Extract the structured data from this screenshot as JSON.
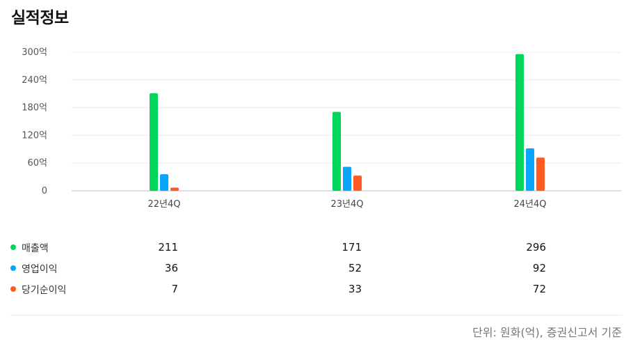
{
  "page": {
    "title": "실적정보",
    "footnote": "단위: 원화(억), 증권신고서 기준"
  },
  "chart_data": {
    "type": "bar",
    "categories": [
      "22년4Q",
      "23년4Q",
      "24년4Q"
    ],
    "series": [
      {
        "name": "매출액",
        "color": "#00d659",
        "values": [
          211,
          171,
          296
        ]
      },
      {
        "name": "영업이익",
        "color": "#0aa5ff",
        "values": [
          36,
          52,
          92
        ]
      },
      {
        "name": "당기순이익",
        "color": "#ff5a1f",
        "values": [
          7,
          33,
          72
        ]
      }
    ],
    "y_ticks": [
      "0",
      "60억",
      "120억",
      "180억",
      "240억",
      "300억"
    ],
    "ylim": [
      0,
      300
    ],
    "grid": true,
    "legend": "table-below"
  }
}
